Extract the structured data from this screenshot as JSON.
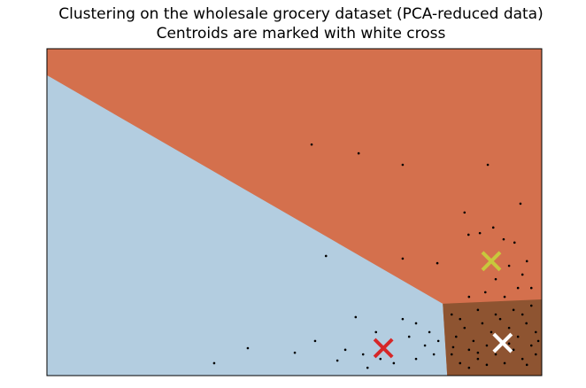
{
  "chart_data": {
    "type": "scatter",
    "title": "Clustering on the wholesale grocery dataset (PCA-reduced data)",
    "subtitle": "Centroids are marked with white cross",
    "xlim": [
      0,
      100
    ],
    "ylim": [
      0,
      100
    ],
    "region_colors": [
      "#d4704d",
      "#b3cde0",
      "#8e5431"
    ],
    "points": {
      "color": "#000000",
      "x": [
        53.5,
        63.0,
        71.9,
        89.1,
        84.4,
        85.2,
        87.5,
        90.2,
        92.3,
        94.5,
        95.7,
        56.4,
        71.9,
        78.9,
        62.4,
        33.8,
        40.6,
        50.1,
        54.2,
        58.7,
        60.3,
        66.5,
        71.9,
        74.6,
        73.2,
        76.4,
        78.2,
        70.1,
        64.8,
        63.9,
        67.4,
        74.6,
        77.3,
        79.1,
        90.7,
        93.4,
        96.1,
        97.9,
        95.2,
        92.5,
        97.0,
        88.6,
        85.3,
        81.8,
        83.5,
        85.3,
        87.1,
        88.9,
        90.7,
        92.5,
        94.3,
        96.1,
        97.9,
        98.8,
        82.7,
        84.4,
        86.2,
        88.0,
        89.8,
        91.6,
        93.4,
        95.2,
        96.9,
        98.8,
        81.8,
        83.5,
        87.1,
        90.7,
        94.3,
        97.9,
        96.1,
        85.3,
        88.9,
        93.4,
        97.0,
        82.1,
        87.1,
        91.6,
        99.3
      ],
      "y": [
        70.7,
        68.0,
        64.5,
        64.5,
        49.9,
        43.1,
        43.6,
        45.3,
        41.7,
        40.7,
        52.6,
        36.6,
        35.8,
        34.4,
        17.9,
        3.8,
        8.4,
        7.0,
        10.6,
        4.6,
        7.9,
        13.3,
        17.3,
        16.0,
        11.9,
        9.2,
        6.5,
        3.8,
        2.4,
        6.5,
        5.1,
        5.1,
        13.3,
        10.6,
        29.5,
        33.6,
        30.9,
        26.8,
        26.8,
        24.1,
        35.0,
        25.5,
        24.1,
        6.5,
        3.8,
        7.9,
        5.1,
        9.2,
        6.5,
        3.8,
        7.9,
        5.1,
        9.2,
        6.5,
        11.9,
        14.6,
        10.6,
        16.0,
        13.3,
        17.3,
        14.6,
        11.9,
        16.0,
        13.3,
        18.7,
        17.3,
        20.1,
        18.7,
        20.1,
        21.4,
        18.7,
        2.4,
        3.3,
        9.8,
        3.3,
        8.7,
        7.0,
        10.6,
        10.6
      ]
    },
    "centroids": {
      "x": [
        68.0,
        89.8,
        92.1
      ],
      "y": [
        8.4,
        35.0,
        10.0
      ],
      "colors": [
        "#d62728",
        "#c8c83c",
        "#ffffff"
      ]
    }
  }
}
